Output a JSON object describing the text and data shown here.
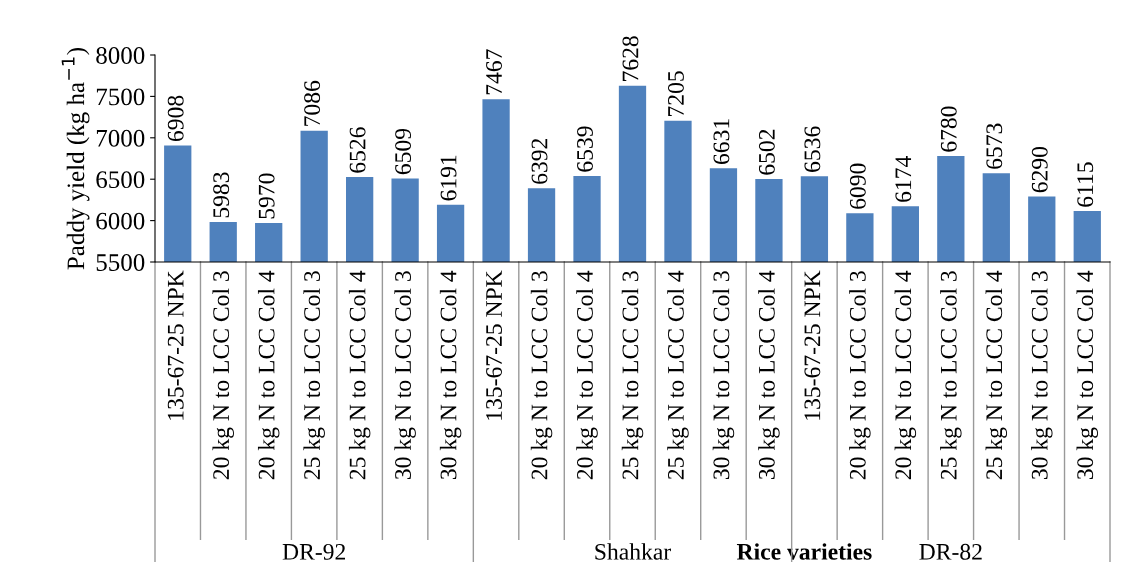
{
  "chart_data": {
    "type": "bar",
    "ylabel": "Paddy yield (kg ha$^{−1}$)",
    "xlabel": "Rice varieties",
    "categories": [
      "135-67-25 NPK",
      "20 kg N to LCC Col 3",
      "20 kg N to LCC Col 4",
      "25 kg N to LCC Col 3",
      "25 kg N to LCC Col 4",
      "30 kg N to LCC Col 3",
      "30 kg N to LCC Col 4",
      "135-67-25 NPK",
      "20 kg N to LCC Col 3",
      "20 kg N to LCC Col 4",
      "25 kg N to LCC Col 3",
      "25 kg N to LCC Col 4",
      "30 kg N to LCC Col 3",
      "30 kg N to LCC Col 4",
      "135-67-25 NPK",
      "20 kg N to LCC Col 3",
      "20 kg N to LCC Col 4",
      "25 kg N to LCC Col 3",
      "25 kg N to LCC Col 4",
      "30 kg N to LCC Col 3",
      "30 kg N to LCC Col 4"
    ],
    "values": [
      6908,
      5983,
      5970,
      7086,
      6526,
      6509,
      6191,
      7467,
      6392,
      6539,
      7628,
      7205,
      6631,
      6502,
      6536,
      6090,
      6174,
      6780,
      6573,
      6290,
      6115
    ],
    "color": "#4f81bd",
    "ylim": [
      5500,
      8000
    ],
    "yticks": [
      5500,
      6000,
      6500,
      7000,
      7500,
      8000
    ],
    "data_labels": true,
    "grid": false,
    "legend": false,
    "annotations": [
      "DR-92",
      "Shahkar",
      "DR-82"
    ]
  }
}
